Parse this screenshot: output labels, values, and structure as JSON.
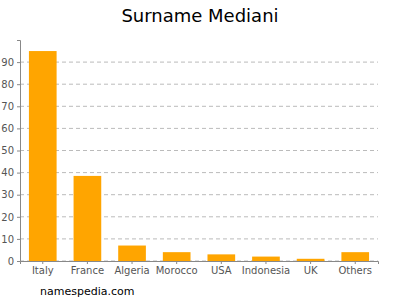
{
  "chart_data": {
    "type": "bar",
    "title": "Surname Mediani",
    "categories": [
      "Italy",
      "France",
      "Algeria",
      "Morocco",
      "USA",
      "Indonesia",
      "UK",
      "Others"
    ],
    "values": [
      95,
      38.5,
      7,
      4,
      3,
      2,
      1,
      4
    ],
    "color": "#ffa500",
    "ylim": [
      0,
      100
    ],
    "yticks": [
      0,
      10,
      20,
      30,
      40,
      50,
      60,
      70,
      80,
      90
    ],
    "grid": true,
    "source": "namespedia.com"
  }
}
